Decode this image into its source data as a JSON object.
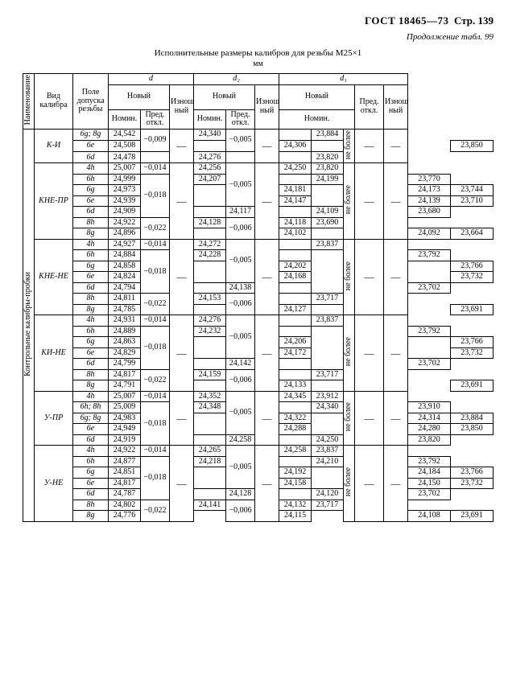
{
  "hdr": {
    "gost": "ГОСТ 18465—73",
    "page": "Стр. 139",
    "cont": "Продолжение табл. 99",
    "title": "Исполнительные размеры калибров для резьбы M25×1",
    "unit": "мм",
    "side": "Контрольные калибры-пробки",
    "naim": "Наименование",
    "neb": "не более"
  },
  "th": {
    "vid": "Вид\nкалибра",
    "pole": "Поле допуска\nрезьбы",
    "nov": "Новый",
    "nom": "Номин.",
    "otk": "Пред.\nоткл.",
    "izn": "Изношен-\nный",
    "d": "d",
    "d2": "d₂",
    "d1": "d₁",
    "dash": "—"
  },
  "groups": [
    {
      "name": "К-И",
      "rows": [
        {
          "p": "6g; 8g",
          "n": "24,542",
          "o": "−0,009",
          "m": 1,
          "n2": "24,340",
          "o2": "−0,005",
          "m2": 1,
          "n21": "",
          "n1": "23,884"
        },
        {
          "p": "6e",
          "n": "24,508",
          "n2": "24,306",
          "n1": "23,850"
        },
        {
          "p": "6d",
          "n": "24,478",
          "o": "",
          "n2": "24,276",
          "o2": "",
          "n1": "23,820"
        }
      ]
    },
    {
      "name": "КНЕ-ПР",
      "rows": [
        {
          "p": "4h",
          "n": "25,007",
          "o": "−0,014",
          "n2": "24,256",
          "o2": "−0,005",
          "m2": 3,
          "n21": "24,250",
          "n1": "23,820"
        },
        {
          "p": "6h",
          "n": "24,999",
          "o": "−0,018",
          "m": 3,
          "n2": "24,207",
          "n21": "24,199",
          "n1": "23,770"
        },
        {
          "p": "6g",
          "n": "24,973",
          "n2": "24,181",
          "n21": "24,173",
          "n1": "23,744"
        },
        {
          "p": "6e",
          "n": "24,939",
          "n2": "24,147",
          "n21": "24,139",
          "n1": "23,710"
        },
        {
          "p": "6d",
          "n": "24,909",
          "o": "",
          "n2": "24,117",
          "o2": "",
          "n21": "24,109",
          "n1": "23,680"
        },
        {
          "p": "8h",
          "n": "24,922",
          "o": "−0,022",
          "m": 1,
          "n2": "24,128",
          "o2": "−0,006",
          "m2": 1,
          "n21": "24,118",
          "n1": "23,690"
        },
        {
          "p": "8g",
          "n": "24,896",
          "n2": "24,102",
          "n21": "24,092",
          "n1": "23,664"
        }
      ]
    },
    {
      "name": "КНЕ-НЕ",
      "rows": [
        {
          "p": "4h",
          "n": "24,927",
          "o": "−0,014",
          "n2": "24,272",
          "o2": "−0,005",
          "m2": 3,
          "n21": "",
          "n1": "23,837"
        },
        {
          "p": "6h",
          "n": "24,884",
          "o": "−0,018",
          "m": 3,
          "n2": "24,228",
          "n1": "23,792"
        },
        {
          "p": "6g",
          "n": "24,858",
          "n2": "24,202",
          "n1": "23,766"
        },
        {
          "p": "6e",
          "n": "24,824",
          "n2": "24,168",
          "n1": "23,732"
        },
        {
          "p": "6d",
          "n": "24,794",
          "o": "",
          "n2": "24,138",
          "o2": "",
          "n1": "23,702"
        },
        {
          "p": "8h",
          "n": "24,811",
          "o": "−0,022",
          "m": 1,
          "n2": "24,153",
          "o2": "−0,006",
          "m2": 1,
          "n1": "23,717"
        },
        {
          "p": "8g",
          "n": "24,785",
          "n2": "24,127",
          "n1": "23,691"
        }
      ]
    },
    {
      "name": "КИ-НЕ",
      "rows": [
        {
          "p": "4h",
          "n": "24,931",
          "o": "−0,014",
          "n2": "24,276",
          "o2": "−0,005",
          "m2": 3,
          "n21": "",
          "n1": "23,837"
        },
        {
          "p": "6h",
          "n": "24,889",
          "o": "−0,018",
          "m": 3,
          "n2": "24,232",
          "n1": "23,792"
        },
        {
          "p": "6g",
          "n": "24,863",
          "n2": "24,206",
          "n1": "23,766"
        },
        {
          "p": "6e",
          "n": "24,829",
          "n2": "24,172",
          "n1": "23,732"
        },
        {
          "p": "6d",
          "n": "24,799",
          "o": "",
          "n2": "24,142",
          "o2": "",
          "n1": "23,702"
        },
        {
          "p": "8h",
          "n": "24,817",
          "o": "−0,022",
          "m": 1,
          "n2": "24,159",
          "o2": "−0,006",
          "m2": 1,
          "n1": "23,717"
        },
        {
          "p": "8g",
          "n": "24,791",
          "n2": "24,133",
          "n1": "23,691"
        }
      ]
    },
    {
      "name": "У-ПР",
      "rows": [
        {
          "p": "4h",
          "n": "25,007",
          "o": "−0,014",
          "n2": "24,352",
          "o2": "−0,005",
          "m2": 3,
          "n21": "24,345",
          "n1": "23,912"
        },
        {
          "p": "6h; 8h",
          "n": "25,009",
          "o": "−0,018",
          "m": 3,
          "n2": "24,348",
          "n21": "24,340",
          "n1": "23,910"
        },
        {
          "p": "6g; 8g",
          "n": "24,983",
          "n2": "24,322",
          "n21": "24,314",
          "n1": "23,884"
        },
        {
          "p": "6e",
          "n": "24,949",
          "n2": "24,288",
          "n21": "24,280",
          "n1": "23,850"
        },
        {
          "p": "6d",
          "n": "24,919",
          "o": "",
          "n2": "24,258",
          "o2": "",
          "n21": "24,250",
          "n1": "23,820"
        }
      ]
    },
    {
      "name": "У-НЕ",
      "rows": [
        {
          "p": "4h",
          "n": "24,922",
          "o": "−0,014",
          "n2": "24,265",
          "o2": "−0,005",
          "m2": 3,
          "n21": "24,258",
          "n1": "23,837"
        },
        {
          "p": "6h",
          "n": "24,877",
          "o": "−0,018",
          "m": 3,
          "n2": "24,218",
          "n21": "24,210",
          "n1": "23,792"
        },
        {
          "p": "6g",
          "n": "24,851",
          "n2": "24,192",
          "n21": "24,184",
          "n1": "23,766"
        },
        {
          "p": "6e",
          "n": "24,817",
          "n2": "24,158",
          "n21": "24,150",
          "n1": "23,732"
        },
        {
          "p": "6d",
          "n": "24,787",
          "o": "",
          "n2": "24,128",
          "o2": "",
          "n21": "24,120",
          "n1": "23,702"
        },
        {
          "p": "8h",
          "n": "24,802",
          "o": "−0,022",
          "m": 1,
          "n2": "24,141",
          "o2": "−0,006",
          "m2": 1,
          "n21": "24,132",
          "n1": "23,717"
        },
        {
          "p": "8g",
          "n": "24,776",
          "n2": "24,115",
          "n21": "24,108",
          "n1": "23,691"
        }
      ]
    }
  ]
}
